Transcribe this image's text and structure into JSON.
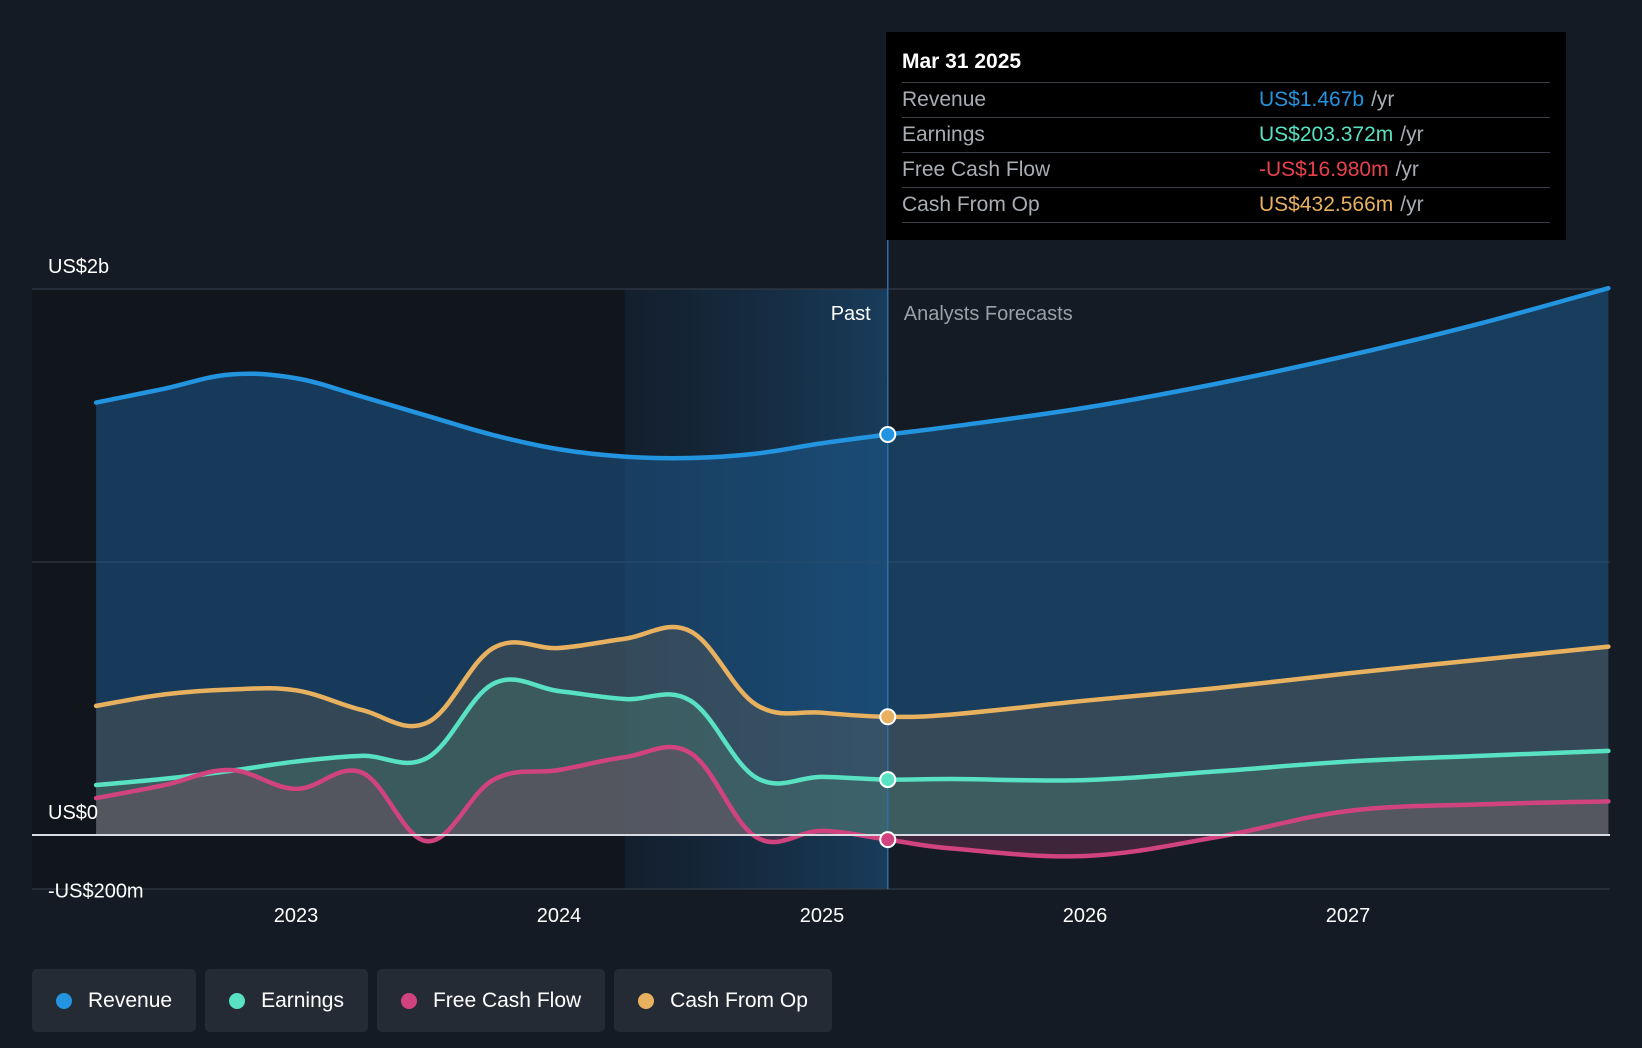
{
  "chart_data": {
    "type": "area",
    "title": "",
    "xlabel": "",
    "ylabel": "",
    "y_tick_labels": [
      "US$2b",
      "US$0",
      "-US$200m"
    ],
    "y_ticks": [
      2000,
      0,
      -200
    ],
    "ylim": [
      -200,
      2000
    ],
    "x_tick_labels": [
      "2023",
      "2024",
      "2025",
      "2026",
      "2027"
    ],
    "xlim": [
      2022.24,
      2027.99
    ],
    "past_label": "Past",
    "forecast_label": "Analysts Forecasts",
    "past_end": 2025.25,
    "highlight_start": 2024.25,
    "grid": "horizontal",
    "legend_position": "bottom-left",
    "series": [
      {
        "name": "Revenue",
        "key": "revenue",
        "color": "#2394df",
        "points": [
          [
            2022.24,
            1584
          ],
          [
            2022.5,
            1635
          ],
          [
            2022.75,
            1687
          ],
          [
            2023.0,
            1673
          ],
          [
            2023.25,
            1606
          ],
          [
            2023.5,
            1535
          ],
          [
            2023.75,
            1465
          ],
          [
            2024.0,
            1413
          ],
          [
            2024.25,
            1386
          ],
          [
            2024.5,
            1381
          ],
          [
            2024.75,
            1397
          ],
          [
            2025.0,
            1435
          ],
          [
            2025.25,
            1467
          ],
          [
            2025.5,
            1497
          ],
          [
            2026.0,
            1565
          ],
          [
            2026.5,
            1653
          ],
          [
            2027.0,
            1756
          ],
          [
            2027.5,
            1873
          ],
          [
            2027.99,
            2003
          ]
        ]
      },
      {
        "name": "Earnings",
        "key": "earnings",
        "color": "#58e1c2",
        "points": [
          [
            2022.24,
            183
          ],
          [
            2022.5,
            206
          ],
          [
            2022.75,
            235
          ],
          [
            2023.0,
            269
          ],
          [
            2023.25,
            290
          ],
          [
            2023.5,
            283
          ],
          [
            2023.75,
            554
          ],
          [
            2024.0,
            527
          ],
          [
            2024.25,
            498
          ],
          [
            2024.5,
            492
          ],
          [
            2024.75,
            210
          ],
          [
            2025.0,
            213
          ],
          [
            2025.25,
            203
          ],
          [
            2025.5,
            205
          ],
          [
            2026.0,
            201
          ],
          [
            2026.5,
            233
          ],
          [
            2027.0,
            269
          ],
          [
            2027.5,
            290
          ],
          [
            2027.99,
            308
          ]
        ]
      },
      {
        "name": "Free Cash Flow",
        "key": "fcf",
        "color": "#d1437f",
        "points": [
          [
            2022.24,
            135
          ],
          [
            2022.5,
            183
          ],
          [
            2022.75,
            238
          ],
          [
            2023.0,
            169
          ],
          [
            2023.25,
            229
          ],
          [
            2023.5,
            -23
          ],
          [
            2023.75,
            202
          ],
          [
            2024.0,
            238
          ],
          [
            2024.25,
            285
          ],
          [
            2024.5,
            300
          ],
          [
            2024.75,
            -8
          ],
          [
            2025.0,
            15
          ],
          [
            2025.25,
            -17
          ],
          [
            2025.5,
            -50
          ],
          [
            2026.0,
            -77
          ],
          [
            2026.5,
            -8
          ],
          [
            2027.0,
            88
          ],
          [
            2027.5,
            112
          ],
          [
            2027.99,
            123
          ]
        ]
      },
      {
        "name": "Cash From Op",
        "key": "cfo",
        "color": "#e8b15f",
        "points": [
          [
            2022.24,
            473
          ],
          [
            2022.5,
            515
          ],
          [
            2022.75,
            533
          ],
          [
            2023.0,
            530
          ],
          [
            2023.25,
            458
          ],
          [
            2023.5,
            412
          ],
          [
            2023.75,
            685
          ],
          [
            2024.0,
            685
          ],
          [
            2024.25,
            719
          ],
          [
            2024.5,
            746
          ],
          [
            2024.75,
            477
          ],
          [
            2025.0,
            448
          ],
          [
            2025.25,
            433
          ],
          [
            2025.5,
            442
          ],
          [
            2026.0,
            492
          ],
          [
            2026.5,
            538
          ],
          [
            2027.0,
            592
          ],
          [
            2027.5,
            642
          ],
          [
            2027.99,
            690
          ]
        ]
      }
    ]
  },
  "tooltip": {
    "date": "Mar 31 2025",
    "unit": "/yr",
    "rows": [
      {
        "name": "Revenue",
        "value": "US$1.467b",
        "color": "#2394df"
      },
      {
        "name": "Earnings",
        "value": "US$203.372m",
        "color": "#58e1c2"
      },
      {
        "name": "Free Cash Flow",
        "value": "-US$16.980m",
        "color": "#e8414d"
      },
      {
        "name": "Cash From Op",
        "value": "US$432.566m",
        "color": "#e8b15f"
      }
    ]
  },
  "legend": {
    "items": [
      {
        "label": "Revenue",
        "color": "#2394df"
      },
      {
        "label": "Earnings",
        "color": "#58e1c2"
      },
      {
        "label": "Free Cash Flow",
        "color": "#d1437f"
      },
      {
        "label": "Cash From Op",
        "color": "#e8b15f"
      }
    ]
  }
}
